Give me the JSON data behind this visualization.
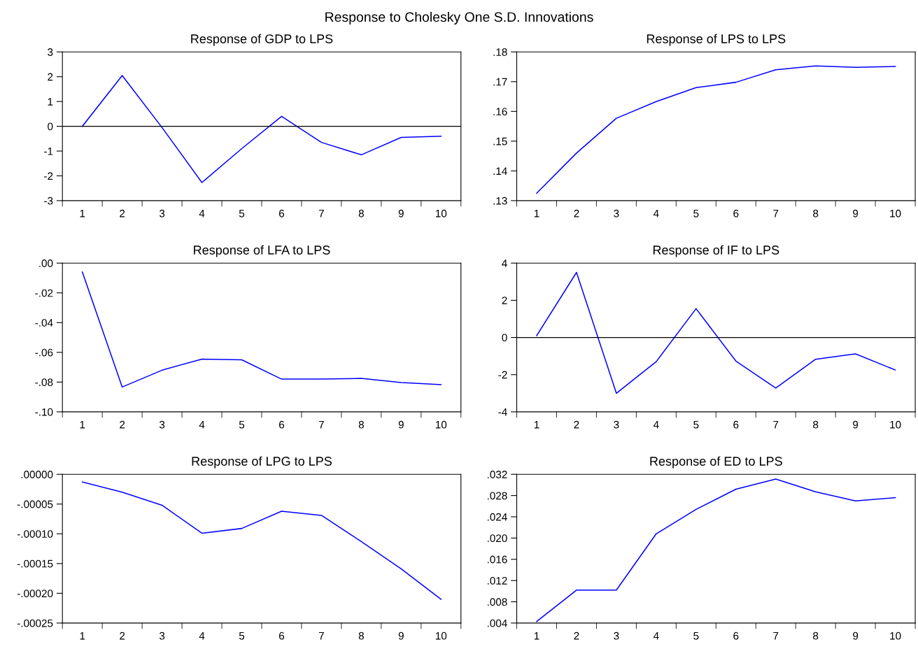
{
  "chart_data": [
    {
      "type": "line",
      "title": "Response of GDP to LPS",
      "categories": [
        "1",
        "2",
        "3",
        "4",
        "5",
        "6",
        "7",
        "8",
        "9",
        "10"
      ],
      "series": [
        {
          "color": "#0000ff",
          "values": [
            0,
            2.05,
            -0.05,
            -2.27,
            -0.9,
            0.4,
            -0.65,
            -1.15,
            -0.45,
            -0.4
          ]
        }
      ],
      "ylim": [
        -3,
        3
      ],
      "yticks": [
        -3,
        -2,
        -1,
        0,
        1,
        2,
        3
      ],
      "ref_lines": [
        {
          "axis": "y",
          "value": 0,
          "color": "#000000"
        }
      ],
      "grid": false,
      "legend": false
    },
    {
      "type": "line",
      "title": "Response of LPS to LPS",
      "categories": [
        "1",
        "2",
        "3",
        "4",
        "5",
        "6",
        "7",
        "8",
        "9",
        "10"
      ],
      "series": [
        {
          "color": "#0000ff",
          "values": [
            0.1325,
            0.146,
            0.1577,
            0.1633,
            0.168,
            0.1698,
            0.174,
            0.1753,
            0.1748,
            0.1751
          ]
        }
      ],
      "ylim": [
        0.13,
        0.18
      ],
      "yticks": [
        {
          "value": 0.13,
          "label": ".13"
        },
        {
          "value": 0.14,
          "label": ".14"
        },
        {
          "value": 0.15,
          "label": ".15"
        },
        {
          "value": 0.16,
          "label": ".16"
        },
        {
          "value": 0.17,
          "label": ".17"
        },
        {
          "value": 0.18,
          "label": ".18"
        }
      ],
      "grid": false,
      "legend": false
    },
    {
      "type": "line",
      "title": "Response of LFA to LPS",
      "categories": [
        "1",
        "2",
        "3",
        "4",
        "5",
        "6",
        "7",
        "8",
        "9",
        "10"
      ],
      "series": [
        {
          "color": "#0000ff",
          "values": [
            -0.006,
            -0.0833,
            -0.072,
            -0.0645,
            -0.065,
            -0.078,
            -0.078,
            -0.0775,
            -0.0803,
            -0.0817
          ]
        }
      ],
      "ylim": [
        -0.1,
        0.0
      ],
      "yticks": [
        {
          "value": -0.1,
          "label": "-.10"
        },
        {
          "value": -0.08,
          "label": "-.08"
        },
        {
          "value": -0.06,
          "label": "-.06"
        },
        {
          "value": -0.04,
          "label": "-.04"
        },
        {
          "value": -0.02,
          "label": "-.02"
        },
        {
          "value": 0.0,
          "label": ".00"
        }
      ],
      "grid": false,
      "legend": false
    },
    {
      "type": "line",
      "title": "Response of IF to LPS",
      "categories": [
        "1",
        "2",
        "3",
        "4",
        "5",
        "6",
        "7",
        "8",
        "9",
        "10"
      ],
      "series": [
        {
          "color": "#0000ff",
          "values": [
            0.1,
            3.5,
            -3.0,
            -1.3,
            1.55,
            -1.27,
            -2.72,
            -1.17,
            -0.88,
            -1.75
          ]
        }
      ],
      "ylim": [
        -4,
        4
      ],
      "yticks": [
        -4,
        -2,
        0,
        2,
        4
      ],
      "ref_lines": [
        {
          "axis": "y",
          "value": 0,
          "color": "#000000"
        }
      ],
      "grid": false,
      "legend": false
    },
    {
      "type": "line",
      "title": "Response of LPG to LPS",
      "categories": [
        "1",
        "2",
        "3",
        "4",
        "5",
        "6",
        "7",
        "8",
        "9",
        "10"
      ],
      "series": [
        {
          "color": "#0000ff",
          "values": [
            -1.3e-05,
            -3e-05,
            -5.2e-05,
            -9.9e-05,
            -9.1e-05,
            -6.2e-05,
            -6.9e-05,
            -0.000113,
            -0.000159,
            -0.00021
          ]
        }
      ],
      "ylim": [
        -0.00025,
        0.0
      ],
      "yticks": [
        {
          "value": -0.00025,
          "label": "-.00025"
        },
        {
          "value": -0.0002,
          "label": "-.00020"
        },
        {
          "value": -0.00015,
          "label": "-.00015"
        },
        {
          "value": -0.0001,
          "label": "-.00010"
        },
        {
          "value": -5e-05,
          "label": "-.00005"
        },
        {
          "value": 0.0,
          "label": ".00000"
        }
      ],
      "grid": false,
      "legend": false
    },
    {
      "type": "line",
      "title": "Response of ED to LPS",
      "categories": [
        "1",
        "2",
        "3",
        "4",
        "5",
        "6",
        "7",
        "8",
        "9",
        "10"
      ],
      "series": [
        {
          "color": "#0000ff",
          "values": [
            0.0043,
            0.0102,
            0.0102,
            0.0208,
            0.0254,
            0.0292,
            0.0311,
            0.0287,
            0.027,
            0.0276
          ]
        }
      ],
      "ylim": [
        0.004,
        0.032
      ],
      "yticks": [
        {
          "value": 0.004,
          "label": ".004"
        },
        {
          "value": 0.008,
          "label": ".008"
        },
        {
          "value": 0.012,
          "label": ".012"
        },
        {
          "value": 0.016,
          "label": ".016"
        },
        {
          "value": 0.02,
          "label": ".020"
        },
        {
          "value": 0.024,
          "label": ".024"
        },
        {
          "value": 0.028,
          "label": ".028"
        },
        {
          "value": 0.032,
          "label": ".032"
        }
      ],
      "grid": false,
      "legend": false
    },
    {
      "type": "other",
      "annotations": [
        "Response to Cholesky One S.D. Innovations"
      ]
    }
  ]
}
